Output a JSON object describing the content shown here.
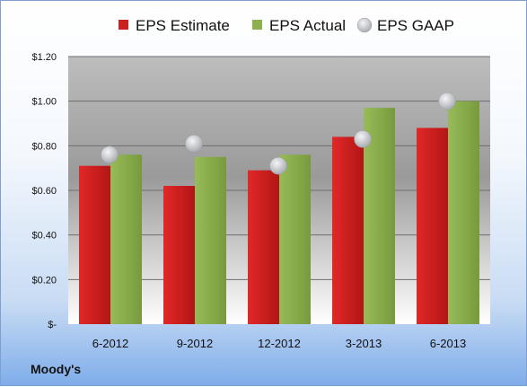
{
  "company": "Moody's",
  "chart_data": {
    "type": "bar",
    "categories": [
      "6-2012",
      "9-2012",
      "12-2012",
      "3-2013",
      "6-2013"
    ],
    "series": [
      {
        "name": "EPS Estimate",
        "kind": "bar",
        "color": "#cc1f1f",
        "values": [
          0.71,
          0.62,
          0.69,
          0.84,
          0.88
        ]
      },
      {
        "name": "EPS Actual",
        "kind": "bar",
        "color": "#8db04f",
        "values": [
          0.76,
          0.75,
          0.76,
          0.97,
          1.0
        ]
      },
      {
        "name": "EPS GAAP",
        "kind": "marker",
        "color": "#bcbec2",
        "values": [
          0.76,
          0.81,
          0.71,
          0.83,
          1.0
        ]
      }
    ],
    "yticks": [
      "$-",
      "$0.20",
      "$0.40",
      "$0.60",
      "$0.80",
      "$1.00",
      "$1.20"
    ],
    "ylim": [
      0,
      1.2
    ],
    "grid": true,
    "legend": "top"
  }
}
